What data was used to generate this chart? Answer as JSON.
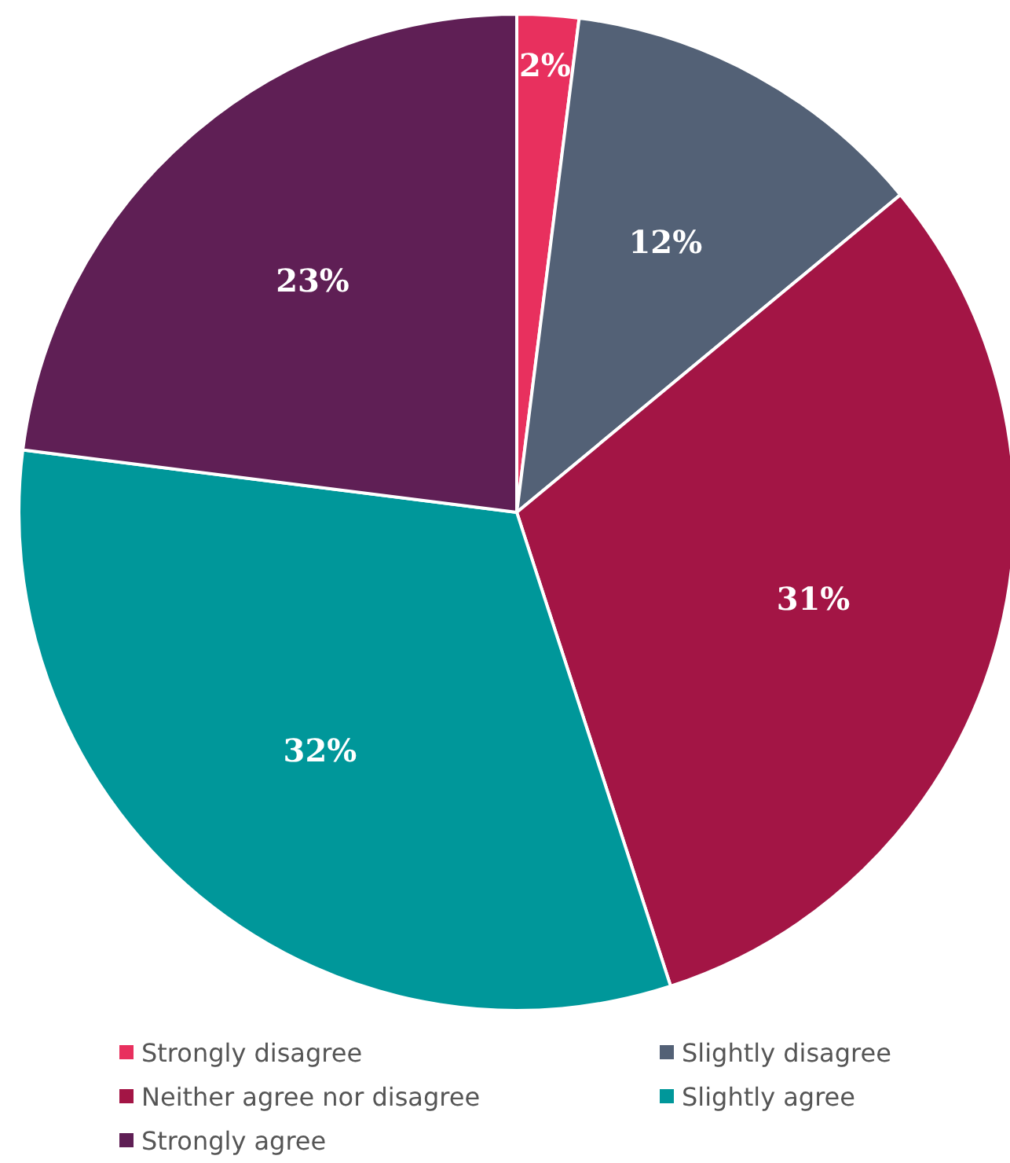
{
  "chart_data": {
    "type": "pie",
    "categories": [
      "Strongly disagree",
      "Slightly disagree",
      "Neither agree nor disagree",
      "Slightly agree",
      "Strongly agree"
    ],
    "values": [
      2,
      12,
      31,
      32,
      23
    ],
    "colors": [
      "#e8305e",
      "#536176",
      "#a31545",
      "#00979a",
      "#5f1f55"
    ],
    "value_labels": [
      "2%",
      "12%",
      "31%",
      "32%",
      "23%"
    ],
    "legend": "bottom"
  }
}
